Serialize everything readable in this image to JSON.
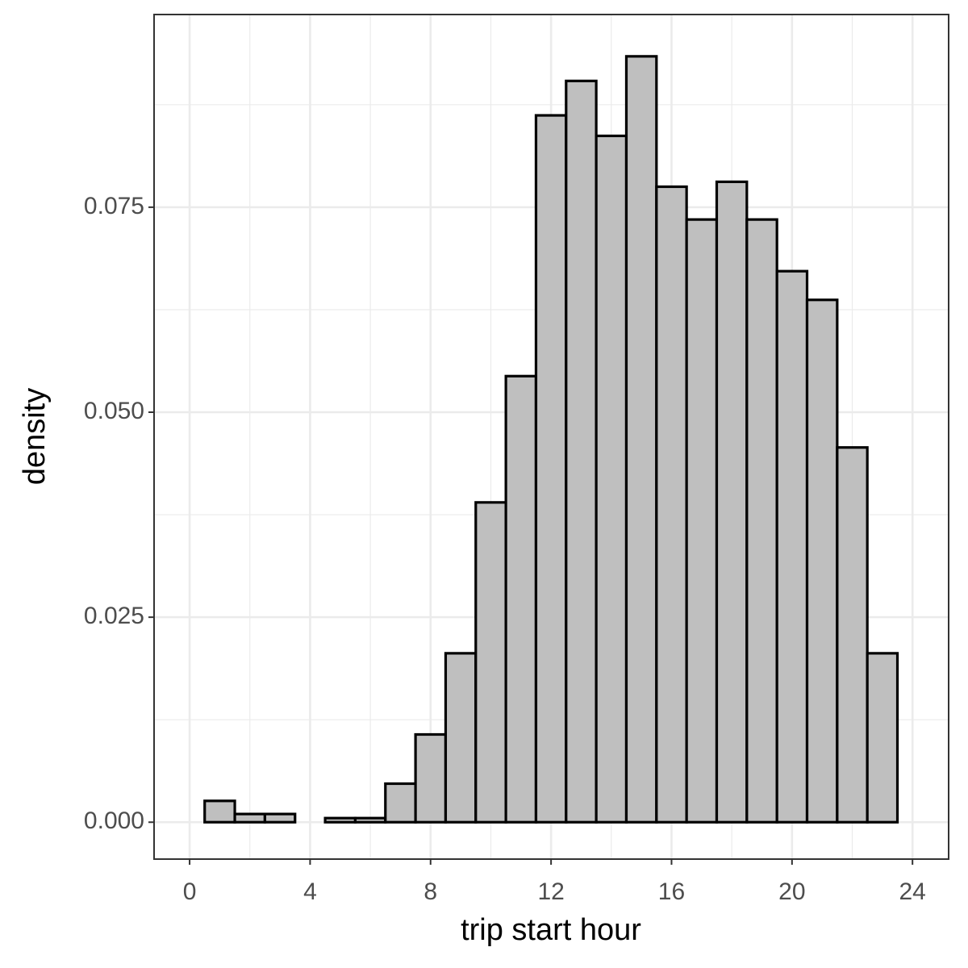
{
  "chart_data": {
    "type": "histogram",
    "x_label": "trip start hour",
    "y_label": "density",
    "bins": [
      0.5,
      1.5,
      2.5,
      3.5,
      4.5,
      5.5,
      6.5,
      7.5,
      8.5,
      9.5,
      10.5,
      11.5,
      12.5,
      13.5,
      14.5,
      15.5,
      16.5,
      17.5,
      18.5,
      19.5,
      20.5,
      21.5,
      22.5,
      23.5
    ],
    "counts": [
      0.0026,
      0.001,
      0.001,
      0,
      0.0005,
      0.0005,
      0.0047,
      0.0107,
      0.0206,
      0.039,
      0.0544,
      0.0862,
      0.0904,
      0.0837,
      0.0934,
      0.0775,
      0.0735,
      0.0781,
      0.0735,
      0.0672,
      0.0637,
      0.0457,
      0.0206
    ],
    "color": "#bfbfbf",
    "edgecolor": "#000000",
    "xlim": [
      -1.18,
      25.2
    ],
    "ylim": [
      -0.0045,
      0.0985
    ],
    "xticks": [
      0,
      4,
      8,
      12,
      16,
      20,
      24
    ],
    "yticks": [
      {
        "value": 0,
        "label": "0.000"
      },
      {
        "value": 0.025,
        "label": "0.025"
      },
      {
        "value": 0.05,
        "label": "0.050"
      },
      {
        "value": 0.075,
        "label": "0.075"
      }
    ],
    "grid": true
  }
}
